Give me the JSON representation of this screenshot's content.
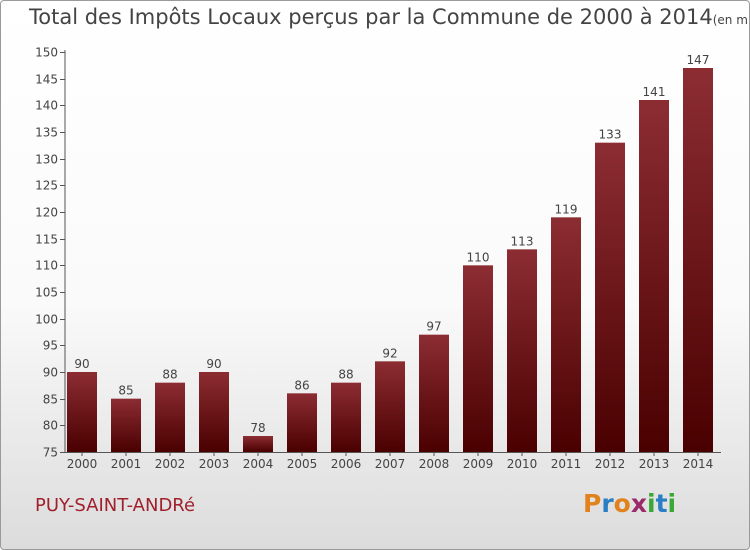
{
  "title": "Total des Impôts Locaux perçus par la Commune de 2000 à 2014",
  "unit": "(en milliers d'€)",
  "commune": "PUY-SAINT-ANDRé",
  "logo": {
    "letters": [
      "P",
      "r",
      "o",
      "x",
      "i",
      "t",
      "i"
    ],
    "colors": [
      "#e2821c",
      "#2a7fc4",
      "#e2821c",
      "#9a2a6a",
      "#3aa836",
      "#2a7fc4",
      "#3aa836"
    ]
  },
  "colors": {
    "bar_top": "#8c2d33",
    "bar_bottom": "#4a0000",
    "commune_text": "#a0202b"
  },
  "chart_data": {
    "type": "bar",
    "title": "Total des Impôts Locaux perçus par la Commune de 2000 à 2014",
    "xlabel": "",
    "ylabel": "",
    "categories": [
      "2000",
      "2001",
      "2002",
      "2003",
      "2004",
      "2005",
      "2006",
      "2007",
      "2008",
      "2009",
      "2010",
      "2011",
      "2012",
      "2013",
      "2014"
    ],
    "values": [
      90,
      85,
      88,
      90,
      78,
      86,
      88,
      92,
      97,
      110,
      113,
      119,
      133,
      141,
      147
    ],
    "data_labels": [
      "90",
      "85",
      "88",
      "90",
      "78",
      "86",
      "88",
      "92",
      "97",
      "110",
      "113",
      "119",
      "133",
      "141",
      "147"
    ],
    "ylim": [
      75,
      150
    ],
    "yticks": [
      75,
      80,
      85,
      90,
      95,
      100,
      105,
      110,
      115,
      120,
      125,
      130,
      135,
      140,
      145,
      150
    ],
    "grid": false,
    "legend": "none"
  }
}
